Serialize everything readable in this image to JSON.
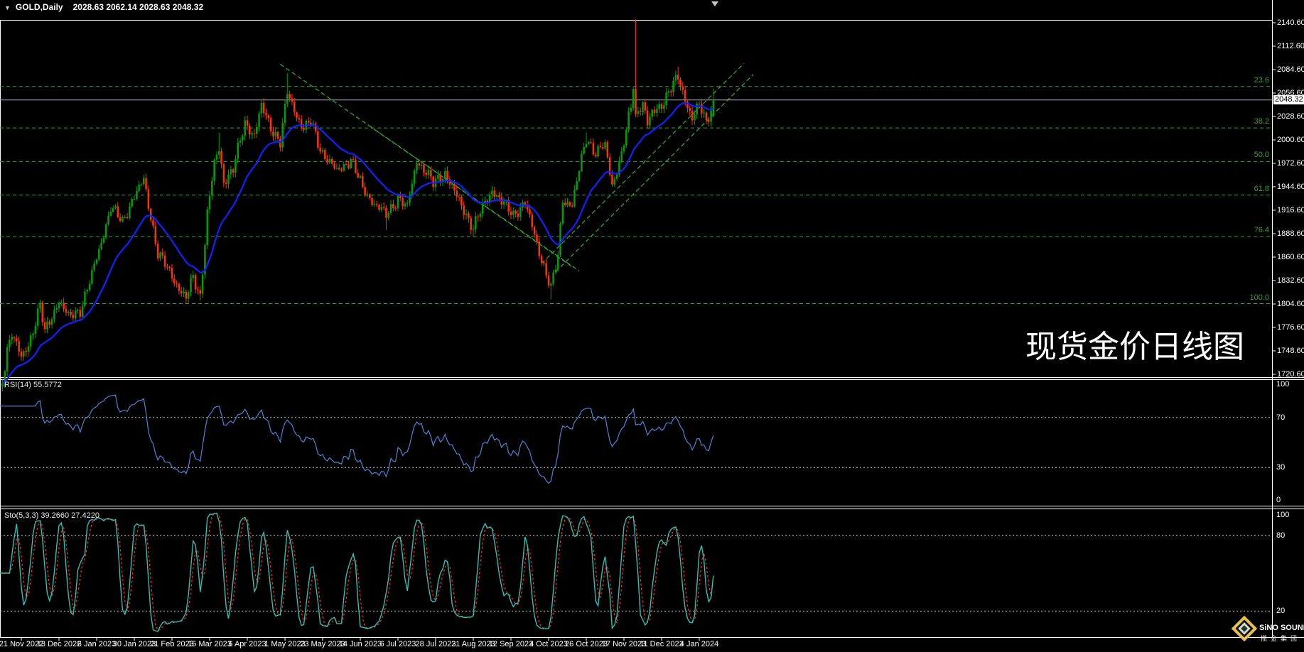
{
  "window": {
    "title_symbol": "GOLD,Daily",
    "title_ohlc": "2028.63 2062.14 2028.63 2048.32"
  },
  "watermark": "现货金价日线图",
  "logo": {
    "text_en": "SiNO SOUND",
    "text_cn": "揽金集团"
  },
  "colors": {
    "background": "#000000",
    "bull": "#00a000",
    "bear": "#ff3300",
    "ma": "#1022ff",
    "fib": "#2fa52f",
    "rsi_line": "#4985d6",
    "stoch_k": "#2fbfb3",
    "stoch_d": "#ff2a2a",
    "price_line": "#a9a9c9",
    "panel_border": "#ffffff",
    "level_dash": "#c8c8c8",
    "axis_text": "#ffffff"
  },
  "price_axis": {
    "ticks": [
      "2140.60",
      "2112.60",
      "2084.60",
      "2056.60",
      "2028.60",
      "2000.60",
      "1972.60",
      "1944.60",
      "1916.60",
      "1888.60",
      "1860.60",
      "1832.60",
      "1804.60",
      "1776.60",
      "1748.60",
      "1720.60"
    ],
    "current_tag": "2048.32"
  },
  "rsi_panel": {
    "label": "RSI(14)",
    "value": "55.5772",
    "axis_labels": [
      "100",
      "70",
      "30",
      "0"
    ],
    "axis_values": [
      100,
      70,
      30,
      0
    ],
    "level_lines": [
      70,
      30
    ]
  },
  "stoch_panel": {
    "label": "Sto(5,3,3)",
    "values": "39.2660 27.4220",
    "axis_labels": [
      "100",
      "80",
      "20"
    ],
    "axis_values": [
      100,
      80,
      20
    ],
    "level_lines": [
      80,
      20
    ]
  },
  "date_axis": {
    "labels": [
      "21 Nov 2022",
      "13 Dec 2022",
      "6 Jan 2023",
      "30 Jan 2023",
      "21 Feb 2023",
      "15 Mar 2023",
      "6 Apr 2023",
      "1 May 2023",
      "23 May 2023",
      "14 Jun 2023",
      "6 Jul 2023",
      "28 Jul 2023",
      "21 Aug 2023",
      "12 Sep 2023",
      "4 Oct 2023",
      "26 Oct 2023",
      "17 Nov 2023",
      "11 Dec 2023",
      "4 Jan 2024"
    ]
  },
  "chart_data": {
    "type": "candlestick",
    "symbol": "GOLD",
    "timeframe": "Daily",
    "title": "GOLD,Daily",
    "current_bar": {
      "open": 2028.63,
      "high": 2062.14,
      "low": 2028.63,
      "close": 2048.32
    },
    "current_price": 2048.32,
    "y_range": [
      1720.6,
      2140.6
    ],
    "x_axis_dates": [
      "21 Nov 2022",
      "13 Dec 2022",
      "6 Jan 2023",
      "30 Jan 2023",
      "21 Feb 2023",
      "15 Mar 2023",
      "6 Apr 2023",
      "1 May 2023",
      "23 May 2023",
      "14 Jun 2023",
      "6 Jul 2023",
      "28 Jul 2023",
      "21 Aug 2023",
      "12 Sep 2023",
      "4 Oct 2023",
      "26 Oct 2023",
      "17 Nov 2023",
      "11 Dec 2023",
      "4 Jan 2024"
    ],
    "close_anchors": [
      [
        -8,
        1712
      ],
      [
        -6,
        1752
      ],
      [
        -4,
        1771
      ],
      [
        0,
        1739
      ],
      [
        3,
        1756
      ],
      [
        8,
        1803
      ],
      [
        10,
        1770
      ],
      [
        16,
        1810
      ],
      [
        20,
        1788
      ],
      [
        25,
        1798
      ],
      [
        30,
        1839
      ],
      [
        38,
        1920
      ],
      [
        43,
        1902
      ],
      [
        47,
        1929
      ],
      [
        52,
        1952
      ],
      [
        58,
        1866
      ],
      [
        63,
        1842
      ],
      [
        70,
        1811
      ],
      [
        73,
        1836
      ],
      [
        76,
        1814
      ],
      [
        79,
        1913
      ],
      [
        82,
        1972
      ],
      [
        84,
        1989
      ],
      [
        86,
        1952
      ],
      [
        90,
        1966
      ],
      [
        95,
        2021
      ],
      [
        99,
        2007
      ],
      [
        102,
        2040
      ],
      [
        106,
        2016
      ],
      [
        110,
        1998
      ],
      [
        113,
        2056
      ],
      [
        117,
        2030
      ],
      [
        120,
        2015
      ],
      [
        123,
        2022
      ],
      [
        127,
        1990
      ],
      [
        134,
        1962
      ],
      [
        140,
        1978
      ],
      [
        145,
        1942
      ],
      [
        150,
        1925
      ],
      [
        155,
        1910
      ],
      [
        160,
        1932
      ],
      [
        164,
        1919
      ],
      [
        168,
        1977
      ],
      [
        172,
        1962
      ],
      [
        175,
        1948
      ],
      [
        180,
        1962
      ],
      [
        185,
        1932
      ],
      [
        188,
        1917
      ],
      [
        192,
        1896
      ],
      [
        196,
        1920
      ],
      [
        200,
        1942
      ],
      [
        204,
        1926
      ],
      [
        209,
        1912
      ],
      [
        214,
        1925
      ],
      [
        220,
        1868
      ],
      [
        225,
        1822
      ],
      [
        228,
        1863
      ],
      [
        230,
        1930
      ],
      [
        234,
        1922
      ],
      [
        238,
        1978
      ],
      [
        240,
        2004
      ],
      [
        244,
        1984
      ],
      [
        248,
        1994
      ],
      [
        251,
        1948
      ],
      [
        255,
        1982
      ],
      [
        259,
        2040
      ],
      [
        260,
        2068
      ],
      [
        261,
        2030
      ],
      [
        264,
        2046
      ],
      [
        266,
        2018
      ],
      [
        268,
        2032
      ],
      [
        272,
        2044
      ],
      [
        276,
        2062
      ],
      [
        279,
        2075
      ],
      [
        281,
        2058
      ],
      [
        283,
        2043
      ],
      [
        285,
        2026
      ],
      [
        288,
        2042
      ],
      [
        291,
        2022
      ],
      [
        294,
        2048.32
      ]
    ],
    "wick_highs": {
      "84": 2009,
      "102": 2049,
      "113": 2080,
      "240": 2009.5,
      "261": 2144.5,
      "279": 2088
    },
    "wick_lows": {
      "70": 1804.8,
      "76": 1809,
      "155": 1893,
      "192": 1884.9,
      "225": 1810
    },
    "moving_average": {
      "type": "EMA",
      "period": 22
    },
    "fibonacci_levels": [
      {
        "label": "23.6",
        "price": 2064.4
      },
      {
        "label": "38.2",
        "price": 2014.9
      },
      {
        "label": "50.0",
        "price": 1974.8
      },
      {
        "label": "61.8",
        "price": 1934.6
      },
      {
        "label": "76.4",
        "price": 1885.1
      },
      {
        "label": "100.0",
        "price": 1805.0
      }
    ],
    "trendlines": [
      {
        "b1": 110,
        "p1": 2091,
        "b2": 237,
        "p2": 1844
      },
      {
        "b1": 148,
        "p1": 2017,
        "b2": 234,
        "p2": 1849
      },
      {
        "b1": 221,
        "p1": 1853,
        "b2": 307,
        "p2": 2092
      },
      {
        "b1": 227,
        "p1": 1843,
        "b2": 311,
        "p2": 2079
      }
    ],
    "indicators": [
      {
        "name": "RSI",
        "period": 14,
        "value": 55.5772
      },
      {
        "name": "Stochastic",
        "params": [
          5,
          3,
          3
        ],
        "k": 39.266,
        "d": 27.422
      }
    ]
  }
}
